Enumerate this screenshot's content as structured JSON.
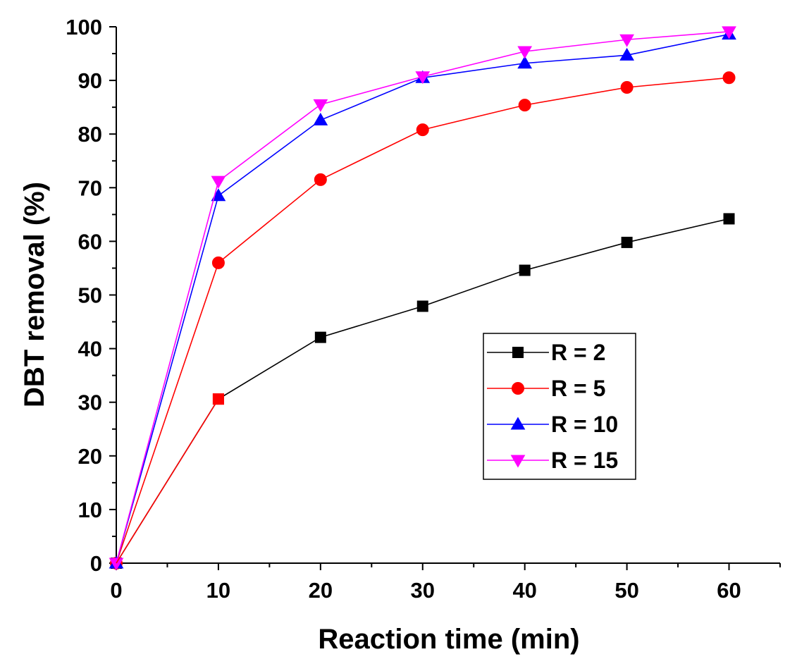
{
  "chart_data": {
    "type": "line",
    "title": "",
    "xlabel": "Reaction time (min)",
    "ylabel": "DBT removal (%)",
    "xlim": [
      0,
      65
    ],
    "ylim": [
      0,
      100
    ],
    "x_ticks": [
      0,
      10,
      20,
      30,
      40,
      50,
      60
    ],
    "y_ticks": [
      0,
      10,
      20,
      30,
      40,
      50,
      60,
      70,
      80,
      90,
      100
    ],
    "grid": false,
    "legend_position": "center-right",
    "x": [
      0,
      10,
      20,
      30,
      40,
      50,
      60
    ],
    "series": [
      {
        "name": "R = 2",
        "color": "#000000",
        "marker": "square",
        "values": [
          0,
          30.6,
          42.1,
          47.9,
          54.6,
          59.8,
          64.2
        ]
      },
      {
        "name": "R = 5",
        "color": "#ff0000",
        "marker": "circle",
        "values": [
          0,
          56.0,
          71.5,
          80.8,
          85.4,
          88.7,
          90.5
        ]
      },
      {
        "name": "R = 10",
        "color": "#0000ff",
        "marker": "triangle-up",
        "values": [
          0,
          68.5,
          82.6,
          90.5,
          93.2,
          94.7,
          98.6
        ]
      },
      {
        "name": "R = 15",
        "color": "#ff00ff",
        "marker": "triangle-down",
        "values": [
          0,
          71.2,
          85.5,
          90.7,
          95.4,
          97.6,
          99.1
        ]
      }
    ]
  }
}
